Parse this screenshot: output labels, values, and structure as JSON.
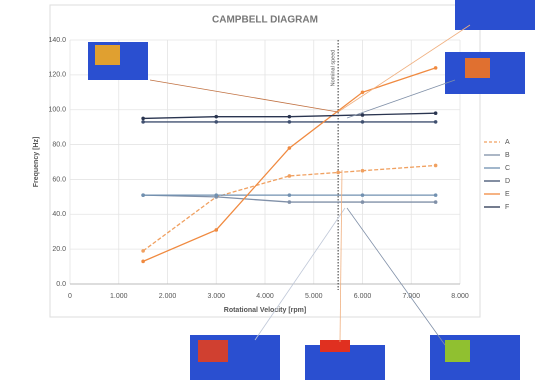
{
  "chart_data": {
    "type": "line",
    "title": "CAMPBELL DIAGRAM",
    "x_label": "Rotational Velocity [rpm]",
    "y_label": "Frequency [Hz]",
    "xlim": [
      0,
      8000
    ],
    "ylim": [
      0,
      140
    ],
    "xticks": [
      0,
      {
        "value": 1000,
        "label": "1.000"
      },
      {
        "value": 2000,
        "label": "2.000"
      },
      {
        "value": 3000,
        "label": "3.000"
      },
      {
        "value": 4000,
        "label": "4.000"
      },
      {
        "value": 5000,
        "label": "5.000"
      },
      {
        "value": 6000,
        "label": "6.000"
      },
      {
        "value": 7000,
        "label": "7.000"
      },
      {
        "value": 8000,
        "label": "8.000"
      }
    ],
    "yticks": [
      {
        "value": 0,
        "label": "0.0"
      },
      {
        "value": 20,
        "label": "20.0"
      },
      {
        "value": 40,
        "label": "40.0"
      },
      {
        "value": 60,
        "label": "60.0"
      },
      {
        "value": 80,
        "label": "80.0"
      },
      {
        "value": 100,
        "label": "100.0"
      },
      {
        "value": 120,
        "label": "120.0"
      },
      {
        "value": 140,
        "label": "140.0"
      }
    ],
    "grid": true,
    "legend": "right",
    "reference_x": 5500,
    "reference_label": "Nominal speed",
    "series": [
      {
        "name": "A",
        "color": "#f0a060",
        "dashed": true,
        "x": [
          1500,
          3000,
          4500,
          5500,
          6000,
          7500
        ],
        "values": [
          19,
          50,
          62,
          64,
          65,
          68
        ]
      },
      {
        "name": "B",
        "color": "#8090a8",
        "dashed": false,
        "x": [
          1500,
          3000,
          4500,
          6000,
          7500
        ],
        "values": [
          51,
          50,
          47,
          47,
          47
        ]
      },
      {
        "name": "C",
        "color": "#7090b0",
        "dashed": false,
        "x": [
          1500,
          3000,
          4500,
          6000,
          7500
        ],
        "values": [
          51,
          51,
          51,
          51,
          51
        ]
      },
      {
        "name": "D",
        "color": "#405070",
        "dashed": false,
        "x": [
          1500,
          3000,
          4500,
          6000,
          7500
        ],
        "values": [
          93,
          93,
          93,
          93,
          93
        ]
      },
      {
        "name": "E",
        "color": "#f08a40",
        "dashed": false,
        "x": [
          1500,
          3000,
          4500,
          6000,
          7500
        ],
        "values": [
          13,
          31,
          78,
          110,
          124
        ]
      },
      {
        "name": "F",
        "color": "#2a3550",
        "dashed": false,
        "x": [
          1500,
          3000,
          4500,
          6000,
          7500
        ],
        "values": [
          95,
          96,
          96,
          97,
          98
        ]
      }
    ]
  }
}
